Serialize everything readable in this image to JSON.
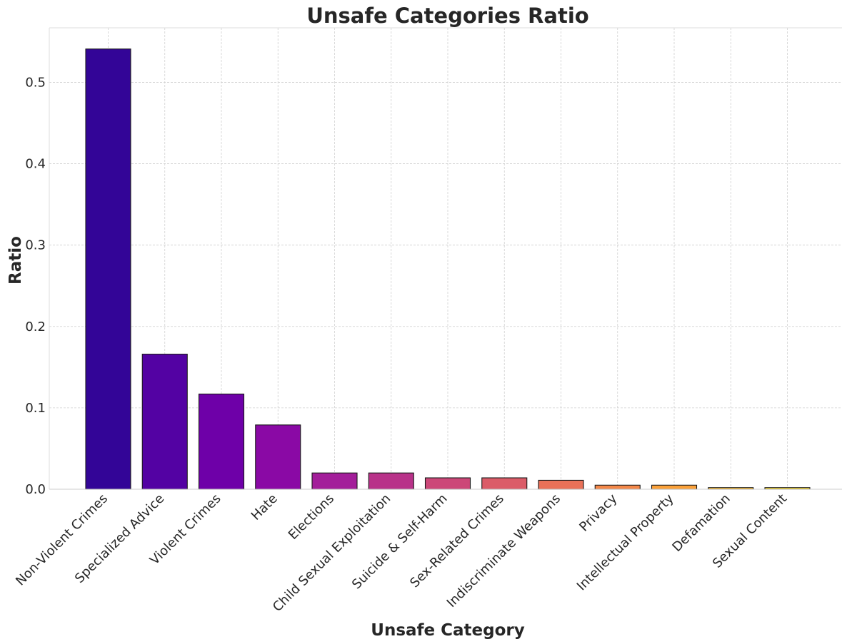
{
  "chart_data": {
    "type": "bar",
    "title": "Unsafe Categories Ratio",
    "xlabel": "Unsafe Category",
    "ylabel": "Ratio",
    "categories": [
      "Non-Violent Crimes",
      "Specialized Advice",
      "Violent Crimes",
      "Hate",
      "Elections",
      "Child Sexual Exploitation",
      "Suicide & Self-Harm",
      "Sex-Related Crimes",
      "Indiscriminate Weapons",
      "Privacy",
      "Intellectual Property",
      "Defamation",
      "Sexual Content"
    ],
    "values": [
      0.541,
      0.166,
      0.117,
      0.079,
      0.02,
      0.02,
      0.014,
      0.014,
      0.011,
      0.005,
      0.005,
      0.002,
      0.002
    ],
    "colors": [
      "#330597",
      "#5302a3",
      "#6e00a8",
      "#8a09a5",
      "#a31e9a",
      "#b83289",
      "#cc4778",
      "#db5c68",
      "#e97158",
      "#f48849",
      "#fba139",
      "#febd2a",
      "#fada24"
    ],
    "yticks": [
      "0.0",
      "0.1",
      "0.2",
      "0.3",
      "0.4",
      "0.5"
    ],
    "ylim": [
      0,
      0.567
    ],
    "grid": true,
    "legend": "none"
  }
}
